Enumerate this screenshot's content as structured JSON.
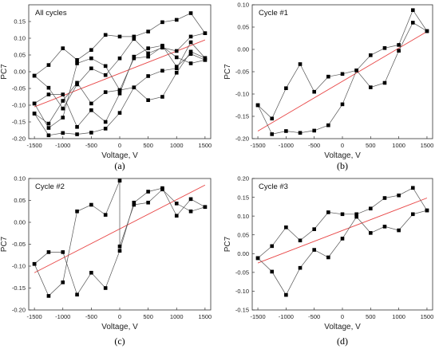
{
  "chart_data": [
    {
      "type": "scatter",
      "title": "All cycles",
      "xlabel": "Voltage, V",
      "ylabel": "PC7",
      "caption": "(a)",
      "xlim": [
        -1600,
        1600
      ],
      "ylim": [
        -0.2,
        0.2
      ],
      "xticks": [
        -1500,
        -1000,
        -500,
        0,
        500,
        1000,
        1500
      ],
      "xtick_labels": [
        "-1500",
        "-1000",
        "-500",
        "0",
        "500",
        "1000",
        "1500"
      ],
      "yticks": [
        -0.2,
        -0.15,
        -0.1,
        -0.05,
        0,
        0.05,
        0.1,
        0.15
      ],
      "ytick_labels": [
        "-0.20",
        "-0.15",
        "-0.10",
        "-0.05",
        "0.00",
        "0.05",
        "0.10",
        "0.15"
      ],
      "fit_line": [
        [
          -1500,
          -0.105
        ],
        [
          1500,
          0.095
        ]
      ],
      "series": [
        {
          "points": [
            [
              -1500,
              -0.125
            ],
            [
              -1250,
              -0.19
            ],
            [
              -1000,
              -0.183
            ],
            [
              -750,
              -0.187
            ],
            [
              -500,
              -0.182
            ],
            [
              -250,
              -0.17
            ],
            [
              0,
              -0.123
            ],
            [
              250,
              -0.047
            ],
            [
              500,
              -0.013
            ],
            [
              750,
              0.003
            ],
            [
              1000,
              0.01
            ],
            [
              1250,
              0.088
            ],
            [
              1500,
              0.041
            ]
          ]
        },
        {
          "points": [
            [
              -1500,
              -0.125
            ],
            [
              -1250,
              -0.155
            ],
            [
              -1000,
              -0.087
            ],
            [
              -750,
              -0.033
            ],
            [
              -500,
              -0.095
            ],
            [
              -250,
              -0.061
            ],
            [
              0,
              -0.055
            ],
            [
              250,
              -0.047
            ],
            [
              500,
              -0.085
            ],
            [
              750,
              -0.075
            ],
            [
              1000,
              -0.003
            ],
            [
              1250,
              0.06
            ],
            [
              1500,
              0.041
            ]
          ]
        },
        {
          "points": [
            [
              -1500,
              -0.095
            ],
            [
              -1250,
              -0.068
            ],
            [
              -1000,
              -0.068
            ],
            [
              -750,
              -0.165
            ],
            [
              -500,
              -0.115
            ],
            [
              -250,
              -0.15
            ],
            [
              0,
              -0.065
            ],
            [
              250,
              0.045
            ],
            [
              500,
              0.07
            ],
            [
              750,
              0.078
            ],
            [
              1000,
              0.015
            ],
            [
              1250,
              0.053
            ],
            [
              1500,
              0.035
            ]
          ]
        },
        {
          "points": [
            [
              -1500,
              -0.095
            ],
            [
              -1250,
              -0.168
            ],
            [
              -1000,
              -0.137
            ],
            [
              -750,
              0.025
            ],
            [
              -500,
              0.04
            ],
            [
              -250,
              0.017
            ],
            [
              0,
              -0.055
            ],
            [
              250,
              0.04
            ],
            [
              500,
              0.045
            ],
            [
              750,
              0.075
            ],
            [
              1000,
              0.043
            ],
            [
              1250,
              0.025
            ],
            [
              1500,
              0.035
            ]
          ]
        },
        {
          "points": [
            [
              -1500,
              -0.012
            ],
            [
              -1250,
              0.02
            ],
            [
              -1000,
              0.07
            ],
            [
              -750,
              0.035
            ],
            [
              -500,
              0.065
            ],
            [
              -250,
              0.11
            ],
            [
              0,
              0.105
            ],
            [
              250,
              0.105
            ],
            [
              500,
              0.12
            ],
            [
              750,
              0.148
            ],
            [
              1000,
              0.155
            ],
            [
              1250,
              0.175
            ],
            [
              1500,
              0.115
            ]
          ]
        },
        {
          "points": [
            [
              -1500,
              -0.012
            ],
            [
              -1250,
              -0.048
            ],
            [
              -1000,
              -0.11
            ],
            [
              -750,
              -0.038
            ],
            [
              -500,
              0.01
            ],
            [
              -250,
              -0.01
            ],
            [
              0,
              0.04
            ],
            [
              250,
              0.098
            ],
            [
              500,
              0.055
            ],
            [
              750,
              0.072
            ],
            [
              1000,
              0.062
            ],
            [
              1250,
              0.105
            ],
            [
              1500,
              0.115
            ]
          ]
        }
      ]
    },
    {
      "type": "scatter",
      "title": "Cycle #1",
      "xlabel": "Voltage, V",
      "ylabel": "PC7",
      "caption": "(b)",
      "xlim": [
        -1600,
        1600
      ],
      "ylim": [
        -0.2,
        0.1
      ],
      "xticks": [
        -1500,
        -1000,
        -500,
        0,
        500,
        1000,
        1500
      ],
      "xtick_labels": [
        "-1500",
        "-1000",
        "-500",
        "0",
        "500",
        "1000",
        "1500"
      ],
      "yticks": [
        -0.2,
        -0.15,
        -0.1,
        -0.05,
        0,
        0.05,
        0.1
      ],
      "ytick_labels": [
        "-0.20",
        "-0.15",
        "-0.10",
        "-0.05",
        "0.00",
        "0.05",
        "0.10"
      ],
      "fit_line": [
        [
          -1500,
          -0.183
        ],
        [
          1500,
          0.04
        ]
      ],
      "series": [
        {
          "points": [
            [
              -1500,
              -0.125
            ],
            [
              -1250,
              -0.19
            ],
            [
              -1000,
              -0.183
            ],
            [
              -750,
              -0.187
            ],
            [
              -500,
              -0.182
            ],
            [
              -250,
              -0.17
            ],
            [
              0,
              -0.123
            ],
            [
              250,
              -0.047
            ],
            [
              500,
              -0.013
            ],
            [
              750,
              0.003
            ],
            [
              1000,
              0.01
            ],
            [
              1250,
              0.088
            ],
            [
              1500,
              0.041
            ]
          ]
        },
        {
          "points": [
            [
              -1500,
              -0.125
            ],
            [
              -1250,
              -0.155
            ],
            [
              -1000,
              -0.087
            ],
            [
              -750,
              -0.033
            ],
            [
              -500,
              -0.095
            ],
            [
              -250,
              -0.061
            ],
            [
              0,
              -0.055
            ],
            [
              250,
              -0.047
            ],
            [
              500,
              -0.085
            ],
            [
              750,
              -0.075
            ],
            [
              1000,
              -0.003
            ],
            [
              1250,
              0.06
            ],
            [
              1500,
              0.041
            ]
          ]
        }
      ]
    },
    {
      "type": "scatter",
      "title": "Cycle #2",
      "xlabel": "Voltage, V",
      "ylabel": "PC7",
      "caption": "(c)",
      "xlim": [
        -1600,
        1600
      ],
      "ylim": [
        -0.2,
        0.1
      ],
      "xticks": [
        -1500,
        -1000,
        -500,
        0,
        500,
        1000,
        1500
      ],
      "xtick_labels": [
        "-1500",
        "-1000",
        "-500",
        "0",
        "500",
        "1000",
        "1500"
      ],
      "yticks": [
        -0.2,
        -0.15,
        -0.1,
        -0.05,
        0,
        0.05,
        0.1
      ],
      "ytick_labels": [
        "-0.20",
        "-0.15",
        "-0.10",
        "-0.05",
        "0.00",
        "0.05",
        "0.10"
      ],
      "fit_line": [
        [
          -1500,
          -0.115
        ],
        [
          1500,
          0.085
        ]
      ],
      "series": [
        {
          "points": [
            [
              -1500,
              -0.095
            ],
            [
              -1250,
              -0.068
            ],
            [
              -1000,
              -0.068
            ],
            [
              -750,
              -0.165
            ],
            [
              -500,
              -0.115
            ],
            [
              -250,
              -0.15
            ],
            [
              0,
              -0.065
            ],
            [
              250,
              0.045
            ],
            [
              500,
              0.07
            ],
            [
              750,
              0.078
            ],
            [
              1000,
              0.015
            ],
            [
              1250,
              0.053
            ],
            [
              1500,
              0.035
            ]
          ]
        },
        {
          "points": [
            [
              -1500,
              -0.095
            ],
            [
              -1250,
              -0.168
            ],
            [
              -1000,
              -0.137
            ],
            [
              -750,
              0.025
            ],
            [
              -500,
              0.04
            ],
            [
              -250,
              0.017
            ],
            [
              0,
              0.095
            ],
            [
              0,
              -0.055
            ],
            [
              250,
              0.04
            ],
            [
              500,
              0.045
            ],
            [
              750,
              0.075
            ],
            [
              1000,
              0.043
            ],
            [
              1250,
              0.025
            ],
            [
              1500,
              0.035
            ]
          ]
        }
      ]
    },
    {
      "type": "scatter",
      "title": "Cycle #3",
      "xlabel": "Voltage, V",
      "ylabel": "PC7",
      "caption": "(d)",
      "xlim": [
        -1600,
        1600
      ],
      "ylim": [
        -0.15,
        0.2
      ],
      "xticks": [
        -1500,
        -1000,
        -500,
        0,
        500,
        1000,
        1500
      ],
      "xtick_labels": [
        "-1500",
        "-1000",
        "-500",
        "0",
        "500",
        "1000",
        "1500"
      ],
      "yticks": [
        -0.15,
        -0.1,
        -0.05,
        0,
        0.05,
        0.1,
        0.15,
        0.2
      ],
      "ytick_labels": [
        "-0.15",
        "-0.10",
        "-0.05",
        "0.00",
        "0.05",
        "0.10",
        "0.15",
        "0.20"
      ],
      "fit_line": [
        [
          -1500,
          -0.025
        ],
        [
          1500,
          0.148
        ]
      ],
      "series": [
        {
          "points": [
            [
              -1500,
              -0.012
            ],
            [
              -1250,
              0.02
            ],
            [
              -1000,
              0.07
            ],
            [
              -750,
              0.035
            ],
            [
              -500,
              0.065
            ],
            [
              -250,
              0.11
            ],
            [
              0,
              0.105
            ],
            [
              250,
              0.105
            ],
            [
              500,
              0.12
            ],
            [
              750,
              0.148
            ],
            [
              1000,
              0.155
            ],
            [
              1250,
              0.175
            ],
            [
              1500,
              0.115
            ]
          ]
        },
        {
          "points": [
            [
              -1500,
              -0.012
            ],
            [
              -1250,
              -0.048
            ],
            [
              -1000,
              -0.11
            ],
            [
              -750,
              -0.038
            ],
            [
              -500,
              0.01
            ],
            [
              -250,
              -0.01
            ],
            [
              0,
              0.04
            ],
            [
              250,
              0.098
            ],
            [
              500,
              0.055
            ],
            [
              750,
              0.072
            ],
            [
              1000,
              0.062
            ],
            [
              1250,
              0.105
            ],
            [
              1500,
              0.115
            ]
          ]
        }
      ]
    }
  ],
  "colors": {
    "axis": "#333333",
    "marker": "#000000",
    "connector": "#555555",
    "fit": "#e84545"
  }
}
